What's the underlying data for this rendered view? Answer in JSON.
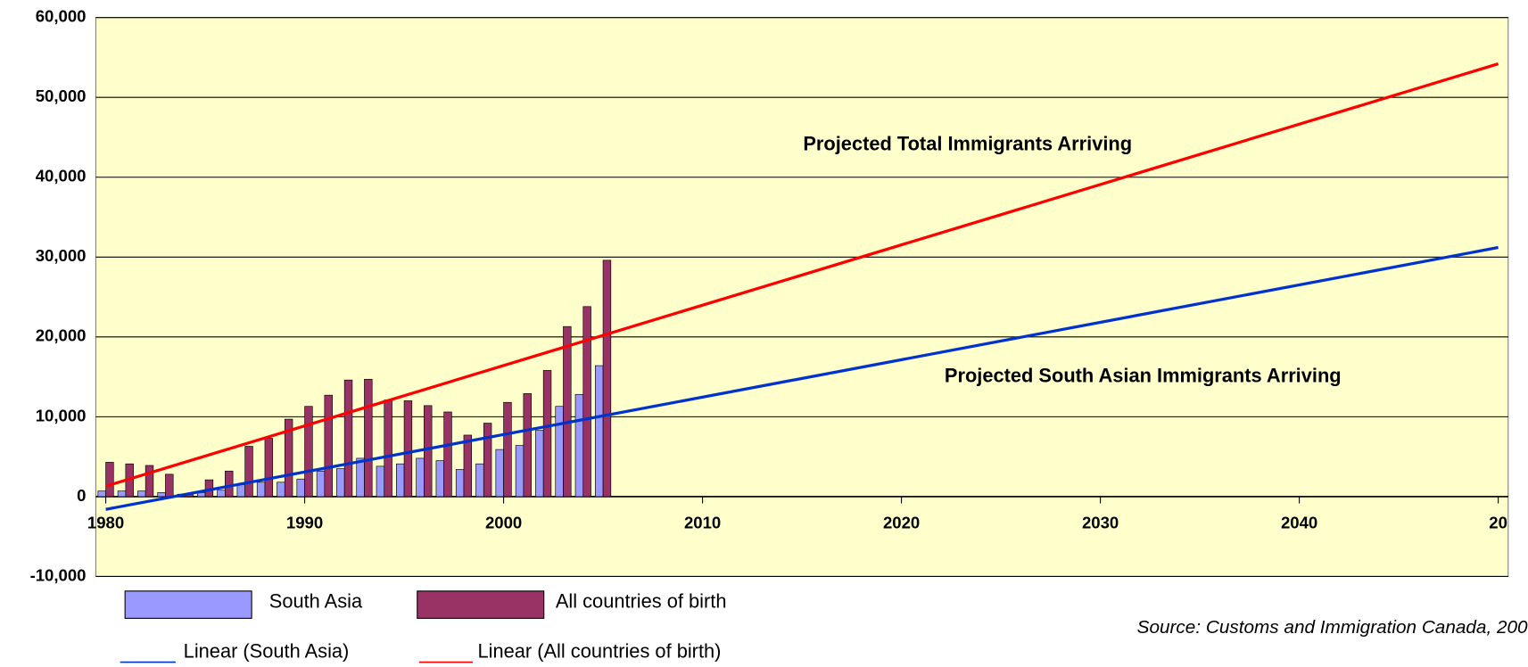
{
  "chart_data": {
    "type": "bar",
    "x": [
      1980,
      1981,
      1982,
      1983,
      1984,
      1985,
      1986,
      1987,
      1988,
      1989,
      1990,
      1991,
      1992,
      1993,
      1994,
      1995,
      1996,
      1997,
      1998,
      1999,
      2000,
      2001,
      2002,
      2003,
      2004,
      2005
    ],
    "series": [
      {
        "name": "South Asia",
        "color": "#9999ff",
        "values": [
          700,
          700,
          700,
          500,
          300,
          500,
          800,
          1500,
          1800,
          1800,
          2200,
          3200,
          3500,
          4800,
          3800,
          4100,
          4800,
          4500,
          3400,
          4100,
          5900,
          6400,
          8300,
          11300,
          12800,
          16400
        ]
      },
      {
        "name": "All countries of birth",
        "color": "#993366",
        "values": [
          4300,
          4100,
          3900,
          2800,
          300,
          2100,
          3200,
          6300,
          7300,
          9700,
          11300,
          12700,
          14600,
          14700,
          12100,
          12000,
          11400,
          10600,
          7700,
          9200,
          11800,
          12900,
          15800,
          21300,
          23800,
          29600
        ]
      }
    ],
    "trendlines": [
      {
        "name": "Linear (South Asia)",
        "color": "#0033cc",
        "x": [
          1980,
          2050
        ],
        "values": [
          -1600,
          31200
        ]
      },
      {
        "name": "Linear (All countries of birth)",
        "color": "#ff0000",
        "x": [
          1980,
          2050
        ],
        "values": [
          1300,
          54200
        ]
      }
    ],
    "annotations": [
      "Projected Total Immigrants Arriving",
      "Projected South Asian Immigrants Arriving"
    ],
    "source": "Source: Customs and Immigration Canada, 200",
    "xlim": [
      1979.5,
      2050.5
    ],
    "xticks": [
      1980,
      1990,
      2000,
      2010,
      2020,
      2030,
      2040,
      {
        "value": 2050,
        "label": "20"
      }
    ],
    "ylim": [
      -10000,
      60000
    ],
    "yticks": [
      {
        "value": -10000,
        "label": "-10,000"
      },
      0,
      {
        "value": 10000,
        "label": "10,000"
      },
      {
        "value": 20000,
        "label": "20,000"
      },
      {
        "value": 30000,
        "label": "30,000"
      },
      {
        "value": 40000,
        "label": "40,000"
      },
      {
        "value": 50000,
        "label": "50,000"
      },
      {
        "value": 60000,
        "label": "60,000"
      }
    ],
    "grid": true,
    "plot_background": "#ffffcc"
  }
}
